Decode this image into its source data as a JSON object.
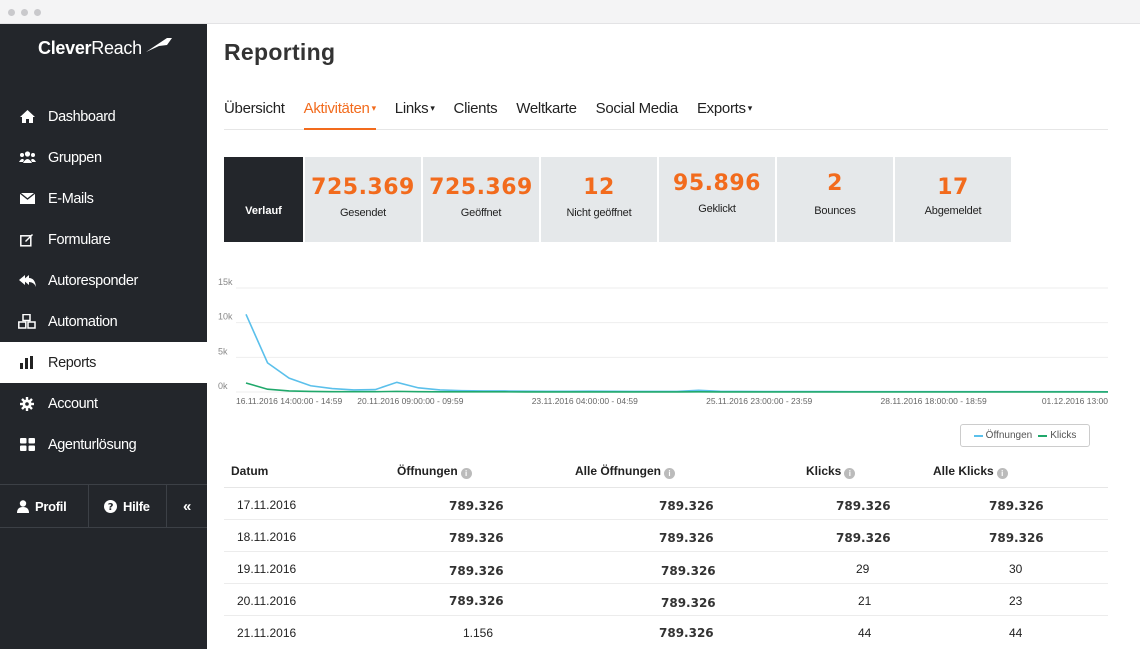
{
  "app": {
    "logo_bold": "Clever",
    "logo_light": "Reach"
  },
  "sidebar": {
    "items": [
      {
        "label": "Dashboard",
        "icon": "home-icon"
      },
      {
        "label": "Gruppen",
        "icon": "users-icon"
      },
      {
        "label": "E-Mails",
        "icon": "envelope-icon"
      },
      {
        "label": "Formulare",
        "icon": "edit-icon"
      },
      {
        "label": "Autoresponder",
        "icon": "reply-all-icon"
      },
      {
        "label": "Automation",
        "icon": "cubes-icon"
      },
      {
        "label": "Reports",
        "icon": "bar-chart-icon"
      },
      {
        "label": "Account",
        "icon": "gear-icon"
      },
      {
        "label": "Agenturlösung",
        "icon": "grid-icon"
      }
    ],
    "bottom": {
      "profile": "Profil",
      "help": "Hilfe",
      "collapse": "«"
    }
  },
  "page": {
    "title": "Reporting"
  },
  "tabs": [
    {
      "label": "Übersicht"
    },
    {
      "label": "Aktivitäten"
    },
    {
      "label": "Links"
    },
    {
      "label": "Clients"
    },
    {
      "label": "Weltkarte"
    },
    {
      "label": "Social Media"
    },
    {
      "label": "Exports"
    }
  ],
  "cards": {
    "verlauf": "Verlauf",
    "stats": [
      {
        "value": "725.369",
        "label": "Gesendet"
      },
      {
        "value": "725.369",
        "label": "Geöffnet"
      },
      {
        "value": "12",
        "label": "Nicht geöffnet"
      },
      {
        "value": "95.896",
        "label": "Geklickt"
      },
      {
        "value": "2",
        "label": "Bounces"
      },
      {
        "value": "17",
        "label": "Abgemeldet"
      }
    ]
  },
  "chart_data": {
    "type": "line",
    "y_ticks": [
      "15k",
      "10k",
      "5k",
      "0k"
    ],
    "ylim": [
      0,
      15000
    ],
    "x_tick_labels": [
      "16.11.2016 14:00:00 - 14:59",
      "20.11.2016 09:00:00 - 09:59",
      "23.11.2016 04:00:00 - 04:59",
      "25.11.2016 23:00:00 - 23:59",
      "28.11.2016 18:00:00 - 18:59",
      "01.12.2016 13:00"
    ],
    "x": [
      0,
      1,
      2,
      3,
      4,
      5,
      6,
      7,
      8,
      9,
      10,
      11,
      12,
      13,
      14,
      15,
      16,
      17,
      18,
      19,
      20,
      21,
      22,
      23,
      24,
      25,
      26,
      27,
      28,
      29,
      30,
      31,
      32,
      33,
      34,
      35,
      36,
      37,
      38,
      39,
      40
    ],
    "series": [
      {
        "name": "Öffnungen",
        "color": "#5bc0eb",
        "values": [
          11200,
          4200,
          2000,
          900,
          500,
          300,
          350,
          1400,
          600,
          300,
          200,
          150,
          150,
          120,
          100,
          100,
          120,
          100,
          90,
          80,
          80,
          250,
          100,
          80,
          70,
          60,
          60,
          60,
          50,
          50,
          50,
          50,
          40,
          40,
          40,
          40,
          40,
          40,
          40,
          40,
          30
        ]
      },
      {
        "name": "Klicks",
        "color": "#20a86b",
        "values": [
          1300,
          400,
          150,
          80,
          50,
          40,
          40,
          90,
          50,
          30,
          20,
          20,
          20,
          15,
          15,
          15,
          15,
          10,
          10,
          10,
          10,
          30,
          10,
          10,
          10,
          10,
          10,
          10,
          10,
          10,
          10,
          10,
          10,
          10,
          10,
          10,
          10,
          10,
          10,
          10,
          10
        ]
      }
    ]
  },
  "legend": {
    "open": "Öffnungen",
    "click": "Klicks"
  },
  "table": {
    "headers": [
      "Datum",
      "Öffnungen",
      "Alle Öffnungen",
      "Klicks",
      "Alle Klicks"
    ],
    "rows": [
      [
        "17.11.2016",
        "789.326",
        "789.326",
        "789.326",
        "789.326"
      ],
      [
        "18.11.2016",
        "789.326",
        "789.326",
        "789.326",
        "789.326"
      ],
      [
        "19.11.2016",
        "789.326",
        "789.326",
        "29",
        "30"
      ],
      [
        "20.11.2016",
        "789.326",
        "789.326",
        "21",
        "23"
      ],
      [
        "21.11.2016",
        "1.156",
        "789.326",
        "44",
        "44"
      ]
    ]
  }
}
